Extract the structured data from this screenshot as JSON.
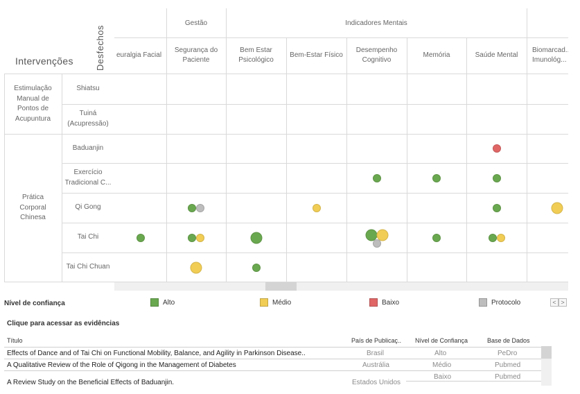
{
  "matrix": {
    "corner_row_label": "Intervenções",
    "corner_col_label": "Desfechos",
    "col_groups": [
      "Gestão",
      "Indicadores Mentais"
    ],
    "columns": [
      "euralgia Facial",
      "Segurança do Paciente",
      "Bem Estar Psicológico",
      "Bem-Estar Físico",
      "Desempenho Cognitivo",
      "Memória",
      "Saúde Mental",
      "Biomarcad... Imunológ..."
    ],
    "row_groups": [
      "Estimulação Manual de Pontos de Acupuntura",
      "Prática Corporal Chinesa"
    ],
    "rows": [
      "Shiatsu",
      "Tuiná (Acupressão)",
      "Baduanjin",
      "Exercício Tradicional C...",
      "Qi Gong",
      "Tai Chi",
      "Tai Chi Chuan"
    ]
  },
  "colors": {
    "alto": "#6aa84f",
    "medio": "#f1cd55",
    "baixo": "#e06666",
    "protocolo": "#bdbdbd"
  },
  "bubbles": [
    {
      "row": "Baduanjin",
      "col": "Saúde Mental",
      "level": "baixo",
      "count": 1
    },
    {
      "row": "Exercício Tradicional C...",
      "col": "Desempenho Cognitivo",
      "level": "alto",
      "count": 1
    },
    {
      "row": "Exercício Tradicional C...",
      "col": "Memória",
      "level": "alto",
      "count": 1
    },
    {
      "row": "Exercício Tradicional C...",
      "col": "Saúde Mental",
      "level": "alto",
      "count": 1
    },
    {
      "row": "Qi Gong",
      "col": "Segurança do Paciente",
      "level": "alto",
      "count": 1
    },
    {
      "row": "Qi Gong",
      "col": "Segurança do Paciente",
      "level": "protocolo",
      "count": 1
    },
    {
      "row": "Qi Gong",
      "col": "Bem-Estar Físico",
      "level": "medio",
      "count": 1
    },
    {
      "row": "Qi Gong",
      "col": "Saúde Mental",
      "level": "alto",
      "count": 1
    },
    {
      "row": "Qi Gong",
      "col": "Biomarcad... Imunológ...",
      "level": "medio",
      "count": 2
    },
    {
      "row": "Tai Chi",
      "col": "euralgia Facial",
      "level": "alto",
      "count": 1
    },
    {
      "row": "Tai Chi",
      "col": "Segurança do Paciente",
      "level": "alto",
      "count": 1
    },
    {
      "row": "Tai Chi",
      "col": "Segurança do Paciente",
      "level": "medio",
      "count": 1
    },
    {
      "row": "Tai Chi",
      "col": "Bem Estar Psicológico",
      "level": "alto",
      "count": 2
    },
    {
      "row": "Tai Chi",
      "col": "Desempenho Cognitivo",
      "level": "alto",
      "count": 2
    },
    {
      "row": "Tai Chi",
      "col": "Desempenho Cognitivo",
      "level": "medio",
      "count": 2
    },
    {
      "row": "Tai Chi",
      "col": "Desempenho Cognitivo",
      "level": "protocolo",
      "count": 1
    },
    {
      "row": "Tai Chi",
      "col": "Memória",
      "level": "alto",
      "count": 1
    },
    {
      "row": "Tai Chi",
      "col": "Saúde Mental",
      "level": "alto",
      "count": 1
    },
    {
      "row": "Tai Chi",
      "col": "Saúde Mental",
      "level": "medio",
      "count": 1
    },
    {
      "row": "Tai Chi Chuan",
      "col": "Segurança do Paciente",
      "level": "medio",
      "count": 2
    },
    {
      "row": "Tai Chi Chuan",
      "col": "Bem Estar Psicológico",
      "level": "alto",
      "count": 1
    }
  ],
  "legend": {
    "title": "Nível de confiança",
    "items": [
      "Alto",
      "Médio",
      "Baixo",
      "Protocolo"
    ],
    "pager_prev": "<",
    "pager_next": ">"
  },
  "evidence": {
    "title": "Clique para acessar as evidências",
    "headers": [
      "Título",
      "País de Publicaç..",
      "Nível de Confiança",
      "Base de Dados"
    ],
    "rows": [
      [
        "Effects of Dance and of Tai Chi on Functional Mobility, Balance, and Agility in Parkinson Disease..",
        "Brasil",
        "Alto",
        "PeDro"
      ],
      [
        "A Qualitative Review of the Role of Qigong in the Management of Diabetes",
        "Austrália",
        "Médio",
        "Pubmed"
      ],
      [
        "A Review Study on the Beneficial Effects of Baduanjin.",
        "Estados Unidos",
        "Baixo",
        "Pubmed"
      ]
    ]
  }
}
